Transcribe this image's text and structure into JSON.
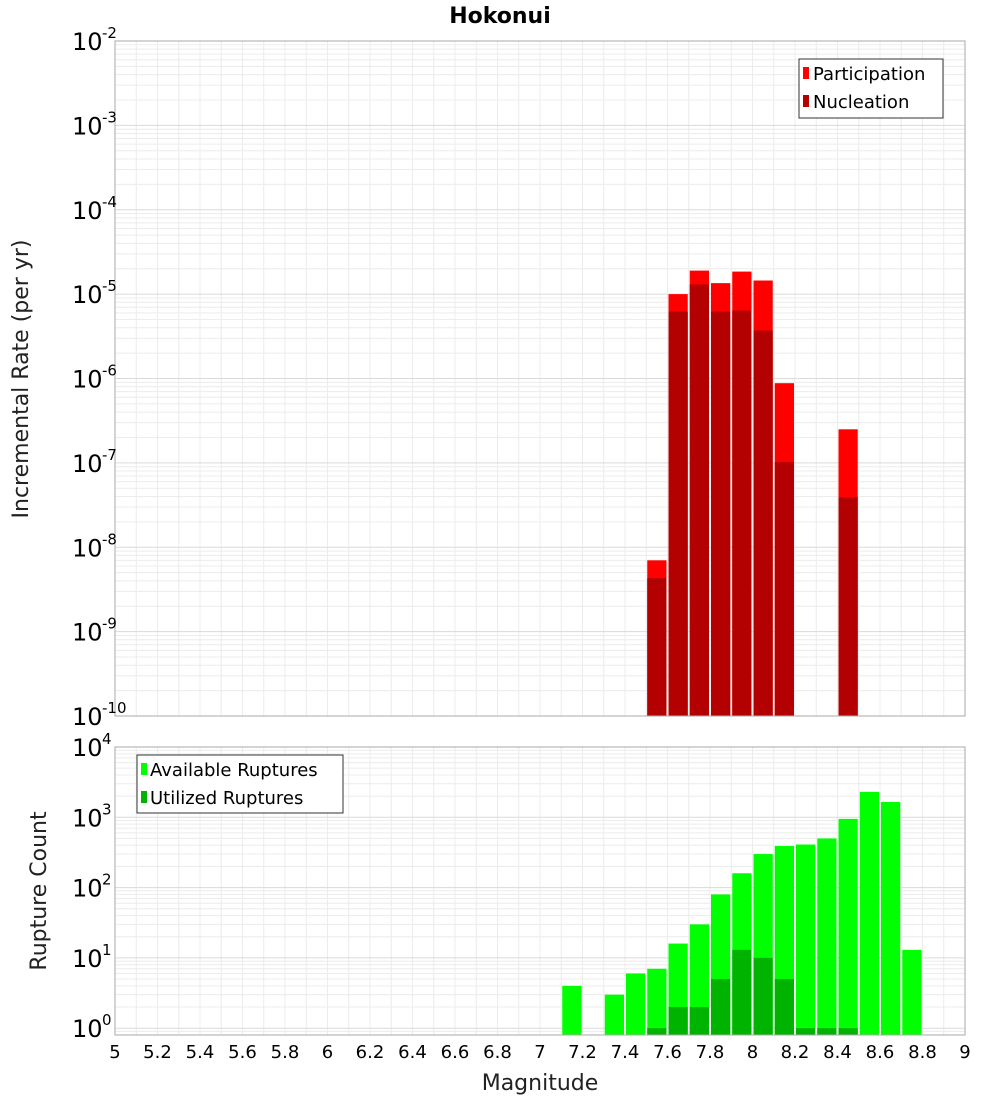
{
  "chart_data": [
    {
      "type": "bar",
      "title": "Hokonui",
      "xlabel": "Magnitude",
      "ylabel": "Incremental Rate (per yr)",
      "yscale": "log",
      "ylim": [
        1e-10,
        0.01
      ],
      "xlim": [
        5,
        9
      ],
      "bin_width": 0.1,
      "legend": {
        "placement": "top-right"
      },
      "y_ticks": [
        {
          "base": "10",
          "exp": "-2",
          "value": 0.01
        },
        {
          "base": "10",
          "exp": "-3",
          "value": 0.001
        },
        {
          "base": "10",
          "exp": "-4",
          "value": 0.0001
        },
        {
          "base": "10",
          "exp": "-5",
          "value": 1e-05
        },
        {
          "base": "10",
          "exp": "-6",
          "value": 1e-06
        },
        {
          "base": "10",
          "exp": "-7",
          "value": 1e-07
        },
        {
          "base": "10",
          "exp": "-8",
          "value": 1e-08
        },
        {
          "base": "10",
          "exp": "-9",
          "value": 1e-09
        },
        {
          "base": "10",
          "exp": "-10",
          "value": 1e-10
        }
      ],
      "series": [
        {
          "name": "Participation",
          "color": "#ff0000",
          "points": [
            {
              "x": 7.55,
              "y": 7e-09
            },
            {
              "x": 7.65,
              "y": 1e-05
            },
            {
              "x": 7.75,
              "y": 1.9e-05
            },
            {
              "x": 7.85,
              "y": 1.35e-05
            },
            {
              "x": 7.95,
              "y": 1.85e-05
            },
            {
              "x": 8.05,
              "y": 1.45e-05
            },
            {
              "x": 8.15,
              "y": 8.8e-07
            },
            {
              "x": 8.45,
              "y": 2.5e-07
            }
          ]
        },
        {
          "name": "Nucleation",
          "color": "#b30000",
          "points": [
            {
              "x": 7.55,
              "y": 4.3e-09
            },
            {
              "x": 7.65,
              "y": 6.2e-06
            },
            {
              "x": 7.75,
              "y": 1.3e-05
            },
            {
              "x": 7.85,
              "y": 6.2e-06
            },
            {
              "x": 7.95,
              "y": 6.4e-06
            },
            {
              "x": 8.05,
              "y": 3.7e-06
            },
            {
              "x": 8.15,
              "y": 1.02e-07
            },
            {
              "x": 8.45,
              "y": 3.9e-08
            }
          ]
        }
      ]
    },
    {
      "type": "bar",
      "title": "",
      "xlabel": "Magnitude",
      "ylabel": "Rupture Count",
      "yscale": "log",
      "ylim": [
        0.8,
        10000
      ],
      "xlim": [
        5,
        9
      ],
      "bin_width": 0.1,
      "legend": {
        "placement": "top-left"
      },
      "x_ticks": [
        "5",
        "5.2",
        "5.4",
        "5.6",
        "5.8",
        "6",
        "6.2",
        "6.4",
        "6.6",
        "6.8",
        "7",
        "7.2",
        "7.4",
        "7.6",
        "7.8",
        "8",
        "8.2",
        "8.4",
        "8.6",
        "8.8",
        "9"
      ],
      "y_ticks": [
        {
          "base": "10",
          "exp": "4",
          "value": 10000
        },
        {
          "base": "10",
          "exp": "3",
          "value": 1000
        },
        {
          "base": "10",
          "exp": "2",
          "value": 100
        },
        {
          "base": "10",
          "exp": "1",
          "value": 10
        },
        {
          "base": "10",
          "exp": "0",
          "value": 1
        }
      ],
      "series": [
        {
          "name": "Available Ruptures",
          "color": "#00ff00",
          "points": [
            {
              "x": 7.15,
              "y": 4
            },
            {
              "x": 7.35,
              "y": 3
            },
            {
              "x": 7.45,
              "y": 6
            },
            {
              "x": 7.55,
              "y": 7
            },
            {
              "x": 7.65,
              "y": 16
            },
            {
              "x": 7.75,
              "y": 30
            },
            {
              "x": 7.85,
              "y": 80
            },
            {
              "x": 7.95,
              "y": 160
            },
            {
              "x": 8.05,
              "y": 300
            },
            {
              "x": 8.15,
              "y": 390
            },
            {
              "x": 8.25,
              "y": 410
            },
            {
              "x": 8.35,
              "y": 500
            },
            {
              "x": 8.45,
              "y": 950
            },
            {
              "x": 8.55,
              "y": 2300
            },
            {
              "x": 8.65,
              "y": 1650
            },
            {
              "x": 8.75,
              "y": 13
            }
          ]
        },
        {
          "name": "Utilized Ruptures",
          "color": "#00b300",
          "points": [
            {
              "x": 7.55,
              "y": 1
            },
            {
              "x": 7.65,
              "y": 2
            },
            {
              "x": 7.75,
              "y": 2
            },
            {
              "x": 7.85,
              "y": 5
            },
            {
              "x": 7.95,
              "y": 13
            },
            {
              "x": 8.05,
              "y": 10
            },
            {
              "x": 8.15,
              "y": 5
            },
            {
              "x": 8.25,
              "y": 1
            },
            {
              "x": 8.35,
              "y": 1
            },
            {
              "x": 8.45,
              "y": 1
            }
          ]
        }
      ]
    }
  ]
}
